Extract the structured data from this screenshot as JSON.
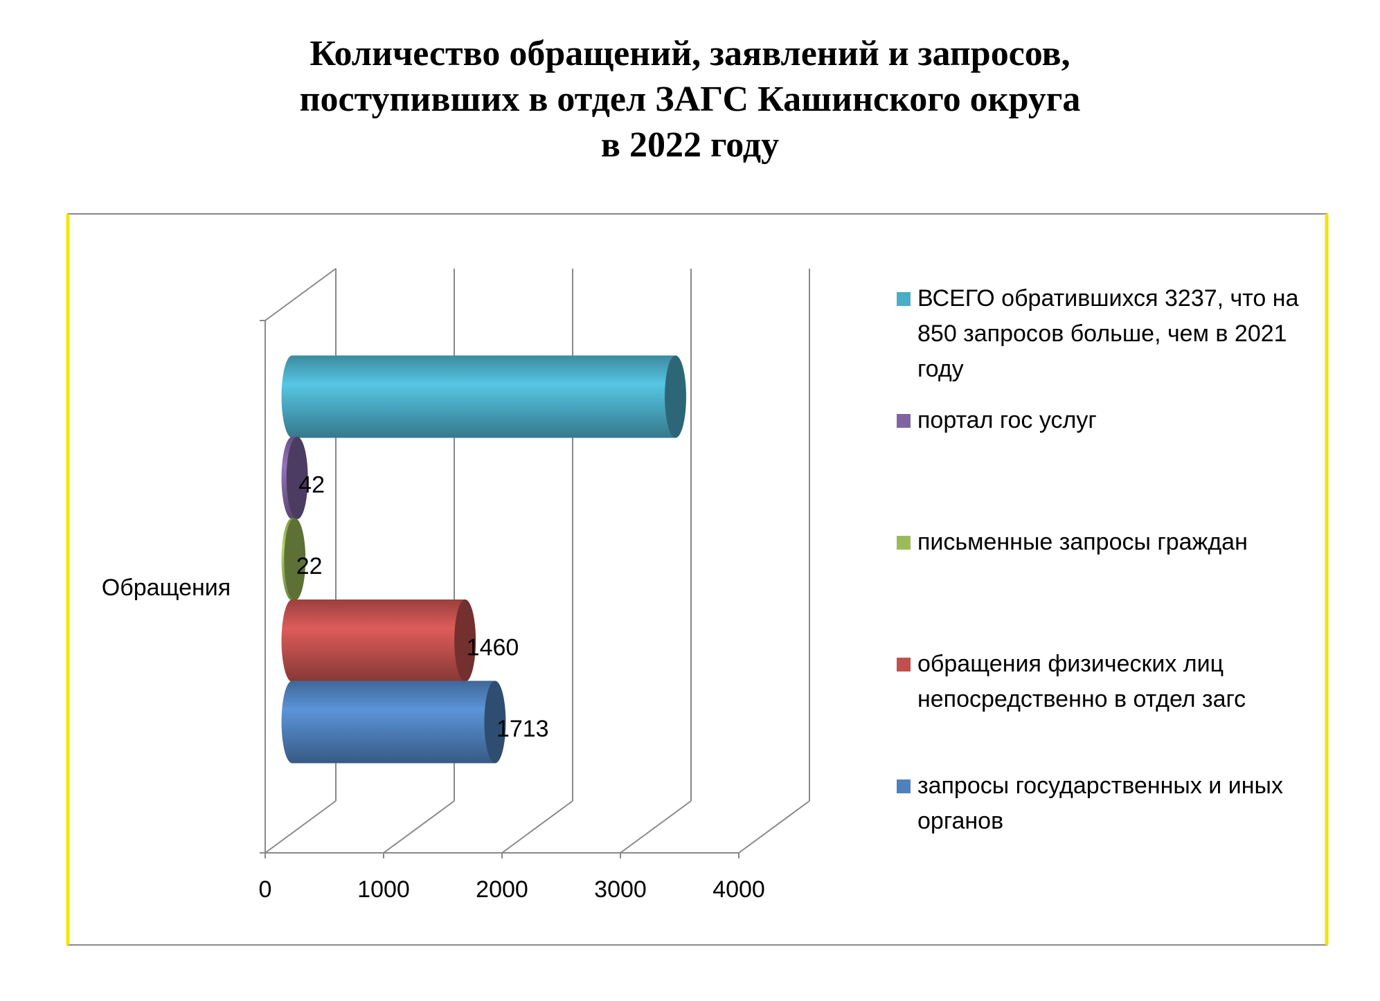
{
  "chart_data": {
    "type": "bar3d",
    "title": "Количество обращений, заявлений и запросов,\nпоступивших в отдел ЗАГС Кашинского округа\nв 2022 году",
    "categories": [
      "Обращения"
    ],
    "series": [
      {
        "name": "ВСЕГО обратившихся 3237, что на 850 запросов больше, чем в 2021 году",
        "color": "#4bacc6",
        "values": [
          3237
        ],
        "show_label": false
      },
      {
        "name": "портал гос услуг",
        "color": "#8064a2",
        "values": [
          42
        ],
        "show_label": true
      },
      {
        "name": "письменные запросы граждан",
        "color": "#9bbb59",
        "values": [
          22
        ],
        "show_label": true
      },
      {
        "name": "обращения физических лиц непосредственно в отдел загс",
        "color": "#c0504d",
        "values": [
          1460
        ],
        "show_label": true
      },
      {
        "name": "запросы государственных и иных органов",
        "color": "#4f81bd",
        "values": [
          1713
        ],
        "show_label": true
      }
    ],
    "xlim": [
      0,
      4000
    ],
    "xticks": [
      0,
      1000,
      2000,
      3000,
      4000
    ],
    "grid": true
  }
}
